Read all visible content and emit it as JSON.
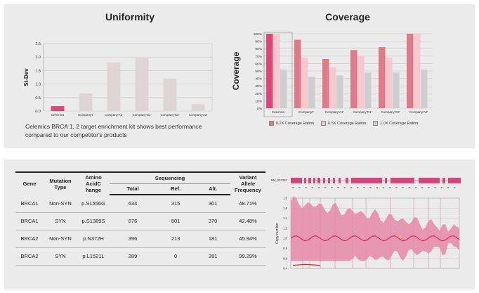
{
  "uniformity": {
    "title": "Uniformity",
    "chart_data": {
      "type": "bar",
      "title": "Uniformity",
      "ylabel": "St-Dev",
      "categories": [
        "Celemics",
        "Company'I'",
        "Company'A1'",
        "Company'G1'",
        "Company'G2'",
        "Company'A2'"
      ],
      "values": [
        0.18,
        0.65,
        1.8,
        1.95,
        1.2,
        0.25
      ],
      "yticks": [
        "0.0",
        "0.5",
        "1.0",
        "1.5",
        "2.0",
        "2.5"
      ],
      "ylim": [
        0,
        2.5
      ],
      "colors": [
        "#e0457a",
        "#ddd5d6",
        "#ddd5d6",
        "#ddd5d6",
        "#ddd5d6",
        "#ddd5d6"
      ],
      "grid": true
    }
  },
  "coverage": {
    "title": "Coverage",
    "chart_data": {
      "type": "bar",
      "title": "Coverage",
      "ylabel": "Coverage",
      "categories": [
        "Celemics",
        "Company'I'",
        "Company'A1'",
        "Company'G1'",
        "Company'G2'",
        "Company'A2'"
      ],
      "series": [
        {
          "name": "0.2X Coverage Ration",
          "color": "#e07a88",
          "values": [
            100,
            92,
            66,
            78,
            82,
            100
          ]
        },
        {
          "name": "0.5X Coverage Ration",
          "color": "#f5c9cd",
          "values": [
            100,
            68,
            55,
            70,
            68,
            100
          ]
        },
        {
          "name": "1.0X Coverage Ration",
          "color": "#cfcfcf",
          "values": [
            52,
            42,
            44,
            48,
            48,
            52
          ]
        }
      ],
      "yticks": [
        "0%",
        "10%",
        "20%",
        "30%",
        "40%",
        "50%",
        "60%",
        "70%",
        "80%",
        "90%",
        "100%"
      ],
      "ylim": [
        0,
        100
      ],
      "highlight_color": "#e0457a",
      "grid": true,
      "legend_position": "bottom"
    }
  },
  "caption": "Celemics BRCA 1, 2 target enrichment kit shows best performance compared to our competitor's products",
  "table": {
    "headers": {
      "gene": "Gene",
      "mutation": "Mutation Type",
      "amino": "Amino AcidC hange",
      "sequencing": "Sequencing",
      "total": "Total",
      "ref": "Ref.",
      "alt": "Alt.",
      "vaf": "Variant Allele Frequency"
    },
    "rows": [
      {
        "gene": "BRCA1",
        "mutation": "Non-SYN",
        "amino": "p.S1556G",
        "total": "634",
        "ref": "315",
        "alt": "301",
        "vaf": "48.71%"
      },
      {
        "gene": "BRCA1",
        "mutation": "SYN",
        "amino": "p.S1389S",
        "total": "876",
        "ref": "501",
        "alt": "370",
        "vaf": "42.48%"
      },
      {
        "gene": "BRCA2",
        "mutation": "Non-SYN",
        "amino": "p.N372H",
        "total": "396",
        "ref": "213",
        "alt": "181",
        "vaf": "45.94%"
      },
      {
        "gene": "BRCA2",
        "mutation": "SYN",
        "amino": "p.L1521L",
        "total": "289",
        "ref": "0",
        "alt": "281",
        "vaf": "99.29%"
      }
    ]
  },
  "copy_number": {
    "transcript": "NM_007297",
    "ylabel": "Copy number",
    "yticks": [
      "0.4",
      "0.6",
      "0.8",
      "1.0",
      "1.2",
      "1.4",
      "1.6",
      "1.8"
    ],
    "ylim": [
      0.4,
      1.8
    ],
    "colors": {
      "band": "#e58aa8",
      "line": "#d82a5c",
      "exon": "#d8457a",
      "low": "#e0202a",
      "accent": "#f2c21b"
    }
  }
}
